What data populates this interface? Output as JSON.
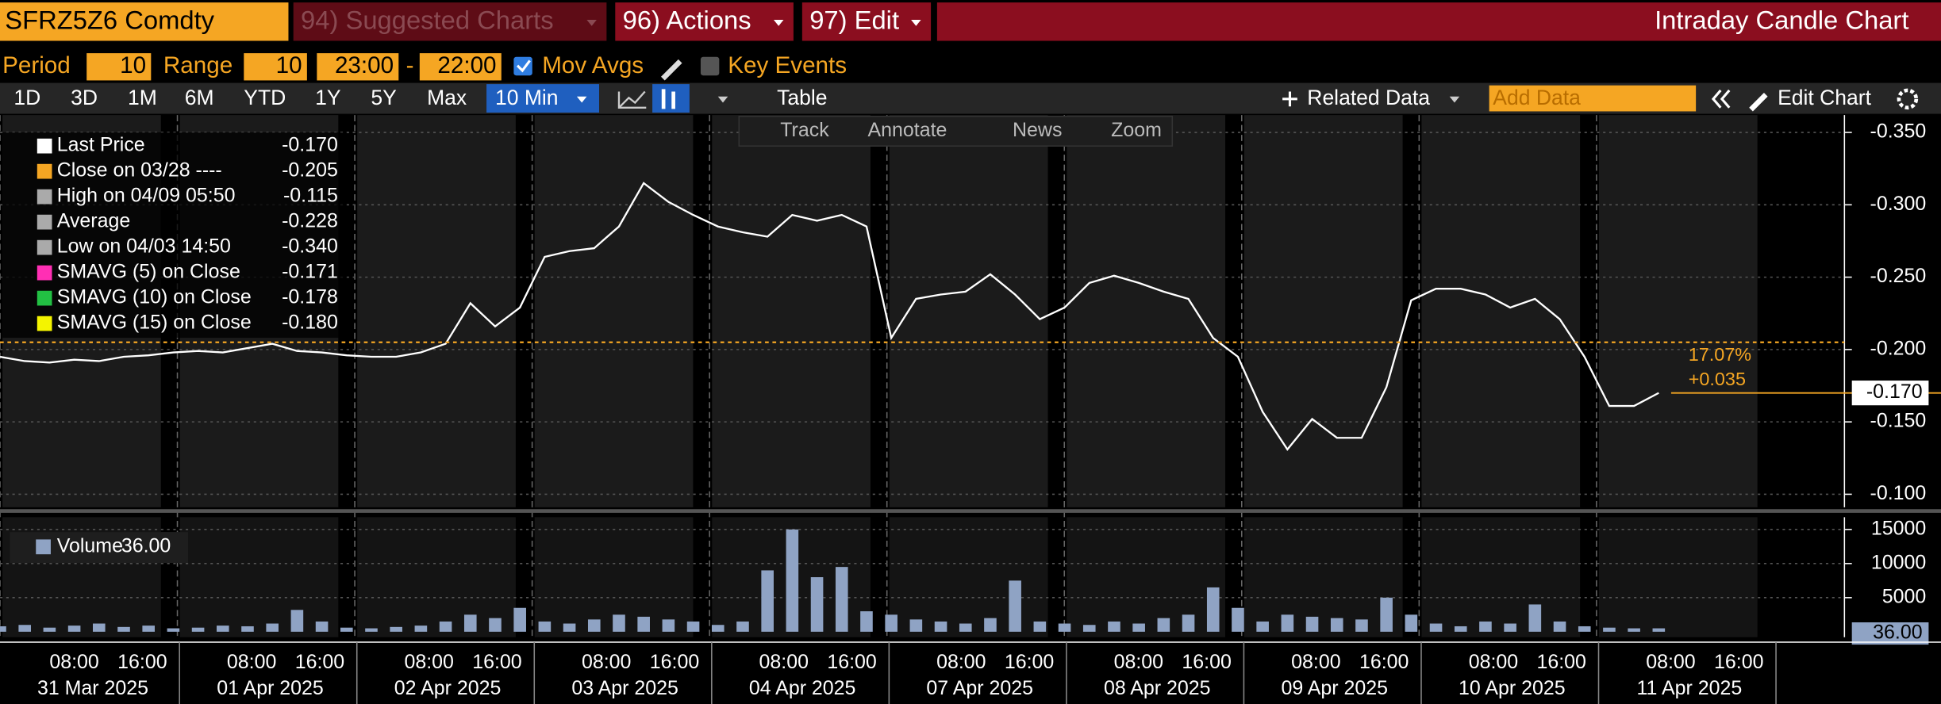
{
  "toolbar": {
    "security": "SFRZ5Z6 Comdty",
    "menus": [
      "94) Suggested Charts",
      "96) Actions",
      "97) Edit"
    ],
    "title": "Intraday Candle Chart"
  },
  "settings": {
    "period_label": "Period",
    "period": "10",
    "range_label": "Range",
    "range": "10",
    "start": "23:00",
    "dash": "-",
    "end": "22:00",
    "mov_avgs": "Mov Avgs",
    "key_events": "Key Events"
  },
  "nav": {
    "ranges": [
      "1D",
      "3D",
      "1M",
      "6M",
      "YTD",
      "1Y",
      "5Y",
      "Max"
    ],
    "interval": "10 Min",
    "table": "Table",
    "related": "Related Data",
    "add_data": "Add Data",
    "edit_chart": "Edit Chart"
  },
  "tools": [
    "Track",
    "Annotate",
    "News",
    "Zoom"
  ],
  "legend": [
    {
      "label": "Last Price",
      "value": {
        "value": -0.17,
        "label": "-0.170"
      },
      "color": "#ffffff"
    },
    {
      "label": "Close on 03/28 ----",
      "value": {
        "value": -0.205,
        "label": "-0.205"
      },
      "color": "#f5a623"
    },
    {
      "label": "High on 04/09 05:50",
      "value": {
        "value": -0.115,
        "label": "-0.115"
      },
      "color": "#aaaaaa"
    },
    {
      "label": "Average",
      "value": {
        "value": -0.228,
        "label": "-0.228"
      },
      "color": "#aaaaaa"
    },
    {
      "label": "Low on 04/03 14:50",
      "value": {
        "value": -0.34,
        "label": "-0.340"
      },
      "color": "#aaaaaa"
    },
    {
      "label": "SMAVG (5)  on Close",
      "value": {
        "value": -0.171,
        "label": "-0.171"
      },
      "color": "#ff2fb4"
    },
    {
      "label": "SMAVG (10)  on Close",
      "value": {
        "value": -0.178,
        "label": "-0.178"
      },
      "color": "#22c043"
    },
    {
      "label": "SMAVG (15)  on Close",
      "value": {
        "value": -0.18,
        "label": "-0.180"
      },
      "color": "#f4f400"
    }
  ],
  "change": {
    "percent": "17.07%",
    "abs": "+0.035"
  },
  "chart_data": [
    {
      "type": "line",
      "series": [
        {
          "name": "Last Price",
          "color": "#ffffff",
          "values": [
            -0.195,
            -0.192,
            -0.191,
            -0.193,
            -0.192,
            -0.195,
            -0.196,
            -0.198,
            -0.199,
            -0.198,
            -0.201,
            -0.204,
            -0.199,
            -0.198,
            -0.196,
            -0.195,
            -0.195,
            -0.198,
            -0.204,
            -0.232,
            -0.216,
            -0.229,
            -0.264,
            -0.268,
            -0.27,
            -0.285,
            -0.315,
            -0.302,
            -0.293,
            -0.285,
            -0.281,
            -0.278,
            -0.293,
            -0.289,
            -0.293,
            -0.285,
            -0.208,
            -0.235,
            -0.238,
            -0.24,
            -0.252,
            -0.238,
            -0.221,
            -0.229,
            -0.246,
            -0.251,
            -0.246,
            -0.24,
            -0.235,
            -0.208,
            -0.195,
            -0.157,
            -0.131,
            -0.152,
            -0.139,
            -0.139,
            -0.174,
            -0.234,
            -0.242,
            -0.242,
            -0.238,
            -0.229,
            -0.235,
            -0.221,
            -0.195,
            -0.161,
            -0.161,
            -0.17
          ]
        }
      ],
      "ylim": [
        -0.091,
        -0.362
      ],
      "yticks": [
        {
          "value": -0.1,
          "label": "-0.100"
        },
        {
          "value": -0.15,
          "label": "-0.150"
        },
        {
          "value": -0.2,
          "label": "-0.200"
        },
        {
          "value": -0.25,
          "label": "-0.250"
        },
        {
          "value": -0.3,
          "label": "-0.300"
        },
        {
          "value": -0.35,
          "label": "-0.350"
        }
      ],
      "grid": true
    },
    {
      "type": "bar",
      "series": [
        {
          "name": "Volume",
          "color": "#8fa3c4",
          "values": [
            800,
            1000,
            600,
            900,
            1200,
            700,
            900,
            500,
            600,
            900,
            800,
            1200,
            3200,
            1500,
            600,
            500,
            700,
            900,
            1500,
            2500,
            2000,
            3500,
            1500,
            1200,
            1800,
            2500,
            2200,
            1800,
            1500,
            1000,
            1500,
            9000,
            15000,
            8000,
            9500,
            3000,
            2500,
            1800,
            1500,
            1200,
            2000,
            7500,
            1500,
            1200,
            1000,
            1500,
            1200,
            2000,
            2500,
            6500,
            3500,
            1500,
            2500,
            2200,
            2000,
            1800,
            5000,
            2500,
            1200,
            800,
            1500,
            1200,
            4000,
            1500,
            800,
            600,
            500,
            500
          ]
        }
      ],
      "legend_value": "36.00",
      "ylim": [
        -800,
        16800
      ],
      "yticks": [
        {
          "value": 5000,
          "label": "5000"
        },
        {
          "value": 10000,
          "label": "10000"
        },
        {
          "value": 15000,
          "label": "15000"
        }
      ],
      "grid": true
    }
  ],
  "x_axis": {
    "times": [
      "08:00",
      "16:00"
    ],
    "days": [
      "31 Mar 2025",
      "01 Apr 2025",
      "02 Apr 2025",
      "03 Apr 2025",
      "04 Apr 2025",
      "07 Apr 2025",
      "08 Apr 2025",
      "09 Apr 2025",
      "10 Apr 2025",
      "11 Apr 2025"
    ]
  }
}
